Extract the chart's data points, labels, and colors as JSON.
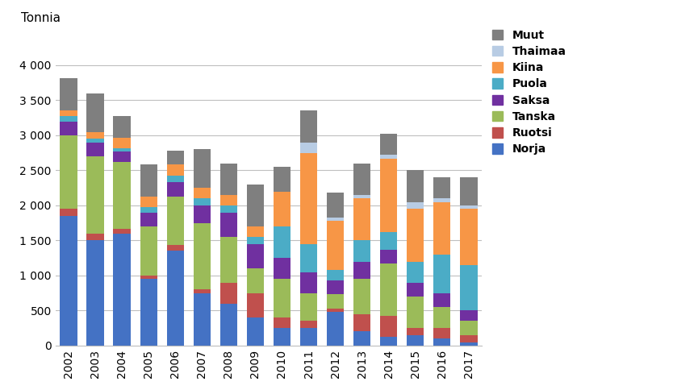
{
  "years": [
    "2002",
    "2003",
    "2004",
    "2005",
    "2006",
    "2007",
    "2008",
    "2009",
    "2010",
    "2011",
    "2012",
    "2013",
    "2014",
    "2015",
    "2016",
    "2017"
  ],
  "series": {
    "Norja": [
      1850,
      1500,
      1600,
      950,
      1350,
      750,
      600,
      400,
      250,
      250,
      480,
      200,
      120,
      150,
      100,
      50
    ],
    "Ruotsi": [
      100,
      100,
      70,
      50,
      80,
      50,
      300,
      350,
      150,
      100,
      50,
      250,
      300,
      100,
      150,
      100
    ],
    "Tanska": [
      1050,
      1100,
      950,
      700,
      700,
      950,
      650,
      350,
      550,
      400,
      200,
      500,
      750,
      450,
      300,
      200
    ],
    "Saksa": [
      200,
      200,
      150,
      200,
      200,
      250,
      350,
      350,
      300,
      300,
      200,
      250,
      200,
      200,
      200,
      150
    ],
    "Puola": [
      80,
      50,
      50,
      80,
      100,
      100,
      100,
      100,
      450,
      400,
      150,
      300,
      250,
      300,
      550,
      650
    ],
    "Kiina": [
      80,
      100,
      150,
      150,
      150,
      150,
      150,
      150,
      500,
      1300,
      700,
      600,
      1050,
      750,
      750,
      800
    ],
    "Thaimaa": [
      0,
      0,
      0,
      0,
      0,
      0,
      0,
      0,
      0,
      150,
      50,
      50,
      50,
      100,
      50,
      50
    ],
    "Muut": [
      450,
      550,
      300,
      450,
      200,
      550,
      450,
      600,
      350,
      450,
      350,
      450,
      300,
      450,
      300,
      400
    ]
  },
  "colors": {
    "Norja": "#4472C4",
    "Ruotsi": "#C0504D",
    "Tanska": "#9BBB59",
    "Saksa": "#7030A0",
    "Puola": "#4BACC6",
    "Kiina": "#F79646",
    "Thaimaa": "#B8CCE4",
    "Muut": "#7F7F7F"
  },
  "ylabel": "Tonnia",
  "ylim": [
    0,
    4500
  ],
  "yticks": [
    0,
    500,
    1000,
    1500,
    2000,
    2500,
    3000,
    3500,
    4000
  ],
  "ytick_labels": [
    "0",
    "500",
    "1 000",
    "1 500",
    "2 000",
    "2 500",
    "3 000",
    "3 500",
    "4 000"
  ],
  "legend_order": [
    "Muut",
    "Thaimaa",
    "Kiina",
    "Puola",
    "Saksa",
    "Tanska",
    "Ruotsi",
    "Norja"
  ],
  "background_color": "#ffffff",
  "grid_color": "#BFBFBF"
}
